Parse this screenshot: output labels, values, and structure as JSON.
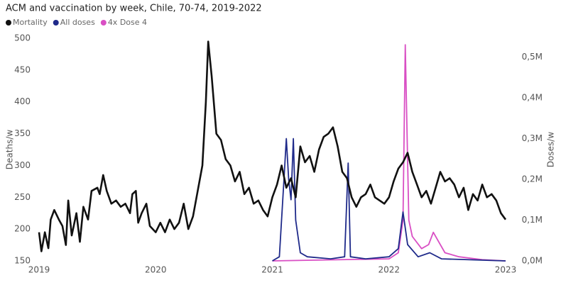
{
  "chart_data": {
    "type": "line",
    "title": "ACM and vaccination by week, Chile, 70-74, 2019-2022",
    "y_label": "Deaths/w",
    "y2_label": "Doses/w",
    "xlim": [
      2019,
      2023
    ],
    "xticks": [
      2019,
      2020,
      2021,
      2022,
      2023
    ],
    "ylim": [
      150,
      500
    ],
    "yticks": [
      150,
      200,
      250,
      300,
      350,
      400,
      450,
      500
    ],
    "y2lim": [
      0,
      546000
    ],
    "y2ticks": [
      {
        "value": 0,
        "label": "0,0M"
      },
      {
        "value": 100000,
        "label": "0,1M"
      },
      {
        "value": 200000,
        "label": "0,2M"
      },
      {
        "value": 300000,
        "label": "0,3M"
      },
      {
        "value": 400000,
        "label": "0,4M"
      },
      {
        "value": 500000,
        "label": "0,5M"
      }
    ],
    "grid": false,
    "series": [
      {
        "name": "Mortality",
        "color": "#111111",
        "x": [
          2019.0,
          2019.02,
          2019.05,
          2019.08,
          2019.1,
          2019.13,
          2019.17,
          2019.2,
          2019.23,
          2019.25,
          2019.28,
          2019.32,
          2019.35,
          2019.38,
          2019.42,
          2019.45,
          2019.5,
          2019.52,
          2019.55,
          2019.58,
          2019.62,
          2019.66,
          2019.7,
          2019.74,
          2019.78,
          2019.8,
          2019.83,
          2019.85,
          2019.88,
          2019.92,
          2019.95,
          2020.0,
          2020.04,
          2020.08,
          2020.12,
          2020.16,
          2020.2,
          2020.24,
          2020.28,
          2020.32,
          2020.36,
          2020.4,
          2020.43,
          2020.45,
          2020.48,
          2020.52,
          2020.56,
          2020.6,
          2020.64,
          2020.68,
          2020.72,
          2020.76,
          2020.8,
          2020.84,
          2020.88,
          2020.92,
          2020.96,
          2021.0,
          2021.04,
          2021.08,
          2021.12,
          2021.16,
          2021.2,
          2021.24,
          2021.28,
          2021.32,
          2021.36,
          2021.4,
          2021.44,
          2021.48,
          2021.52,
          2021.56,
          2021.6,
          2021.64,
          2021.68,
          2021.72,
          2021.76,
          2021.8,
          2021.84,
          2021.88,
          2021.92,
          2021.96,
          2022.0,
          2022.04,
          2022.08,
          2022.12,
          2022.16,
          2022.2,
          2022.24,
          2022.28,
          2022.32,
          2022.36,
          2022.4,
          2022.44,
          2022.48,
          2022.52,
          2022.56,
          2022.6,
          2022.64,
          2022.68,
          2022.72,
          2022.76,
          2022.8,
          2022.84,
          2022.88,
          2022.92,
          2022.96,
          2023.0
        ],
        "values": [
          195,
          165,
          195,
          170,
          215,
          230,
          215,
          205,
          175,
          245,
          190,
          225,
          180,
          235,
          215,
          260,
          265,
          255,
          285,
          260,
          240,
          245,
          235,
          240,
          225,
          255,
          260,
          210,
          225,
          240,
          205,
          195,
          210,
          195,
          215,
          200,
          210,
          240,
          200,
          220,
          260,
          300,
          400,
          495,
          440,
          350,
          340,
          310,
          300,
          275,
          290,
          255,
          265,
          240,
          245,
          230,
          220,
          250,
          270,
          300,
          265,
          280,
          250,
          330,
          305,
          315,
          290,
          325,
          345,
          350,
          360,
          330,
          290,
          280,
          250,
          235,
          250,
          255,
          270,
          250,
          245,
          240,
          250,
          275,
          295,
          305,
          320,
          290,
          270,
          250,
          260,
          240,
          265,
          290,
          275,
          280,
          270,
          250,
          265,
          230,
          255,
          245,
          270,
          250,
          255,
          245,
          225,
          215
        ]
      },
      {
        "name": "All doses",
        "color": "#1f2a8a",
        "axis": "y2",
        "x": [
          2021.0,
          2021.06,
          2021.1,
          2021.12,
          2021.14,
          2021.16,
          2021.18,
          2021.2,
          2021.24,
          2021.3,
          2021.5,
          2021.62,
          2021.65,
          2021.67,
          2021.8,
          2022.0,
          2022.08,
          2022.12,
          2022.16,
          2022.25,
          2022.35,
          2022.45,
          2023.0
        ],
        "values": [
          0,
          10000,
          200000,
          300000,
          200000,
          150000,
          300000,
          100000,
          20000,
          10000,
          5000,
          10000,
          240000,
          10000,
          5000,
          10000,
          30000,
          120000,
          40000,
          10000,
          20000,
          5000,
          0
        ]
      },
      {
        "name": "4x Dose 4",
        "color": "#d94fc4",
        "axis": "y2",
        "x": [
          2021.0,
          2022.0,
          2022.08,
          2022.12,
          2022.14,
          2022.17,
          2022.2,
          2022.28,
          2022.34,
          2022.38,
          2022.42,
          2022.48,
          2022.6,
          2022.8,
          2023.0
        ],
        "values": [
          0,
          5000,
          20000,
          100000,
          530000,
          100000,
          60000,
          30000,
          40000,
          70000,
          50000,
          20000,
          10000,
          3000,
          0
        ]
      }
    ]
  }
}
